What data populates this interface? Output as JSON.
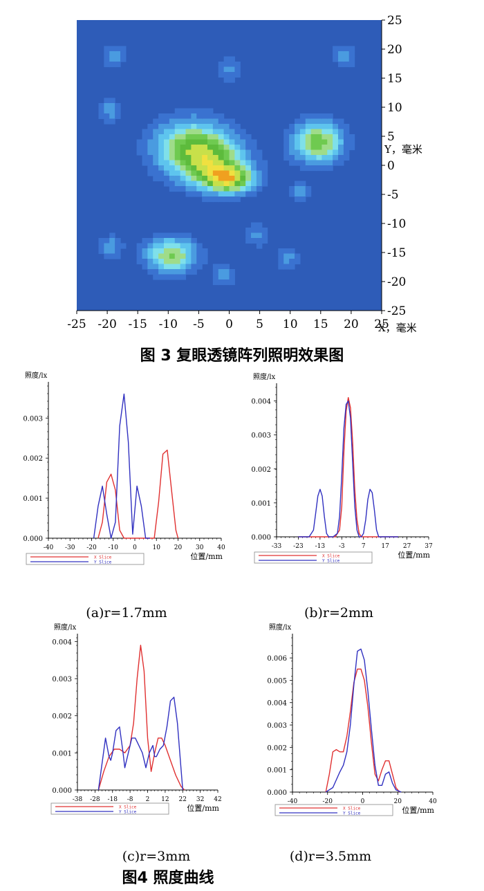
{
  "figure3": {
    "caption": "图 3 复眼透镜阵列照明效果图",
    "chart_data": {
      "type": "heatmap",
      "xlabel": "X，毫米",
      "ylabel": "Y，毫米",
      "xlim": [
        -25,
        25
      ],
      "ylim": [
        -25,
        25
      ],
      "xticks": [
        "-25",
        "-20",
        "-15",
        "-10",
        "-5",
        "0",
        "5",
        "10",
        "15",
        "20",
        "25"
      ],
      "yticks": [
        "25",
        "20",
        "15",
        "10",
        "5",
        "0",
        "-5",
        "-10",
        "-15",
        "-20",
        "-25"
      ],
      "levels": [
        "#2e5cb8",
        "#3a72d0",
        "#4a9be0",
        "#5ec4ee",
        "#7fe0ea",
        "#9fdc8a",
        "#6fca50",
        "#5dbb3c",
        "#c8e04a",
        "#f0e040",
        "#f0a020",
        "#e84a18",
        "#e81818"
      ],
      "background_level": 0,
      "blobs": [
        {
          "x": -19,
          "y": 19,
          "sx": 1.4,
          "sy": 1.4,
          "amp": 0.22
        },
        {
          "x": 19,
          "y": 19,
          "sx": 1.4,
          "sy": 1.4,
          "amp": 0.22
        },
        {
          "x": 0,
          "y": 16.5,
          "sx": 1.4,
          "sy": 1.4,
          "amp": 0.2
        },
        {
          "x": -19.5,
          "y": 9.5,
          "sx": 1.4,
          "sy": 1.4,
          "amp": 0.22
        },
        {
          "x": 14.5,
          "y": 4,
          "sx": 3.0,
          "sy": 2.6,
          "amp": 0.55
        },
        {
          "x": -6,
          "y": 3,
          "sx": 4.5,
          "sy": 3.5,
          "amp": 0.55
        },
        {
          "x": -2,
          "y": 0,
          "sx": 4.0,
          "sy": 2.8,
          "amp": 0.35
        },
        {
          "x": 0,
          "y": -2.5,
          "sx": 3.0,
          "sy": 1.6,
          "amp": 0.55
        },
        {
          "x": 11.5,
          "y": -4.5,
          "sx": 1.2,
          "sy": 1.2,
          "amp": 0.2
        },
        {
          "x": 4.5,
          "y": -12,
          "sx": 1.4,
          "sy": 1.4,
          "amp": 0.2
        },
        {
          "x": 9.5,
          "y": -16,
          "sx": 1.4,
          "sy": 1.4,
          "amp": 0.2
        },
        {
          "x": -19.5,
          "y": -14,
          "sx": 1.4,
          "sy": 1.4,
          "amp": 0.22
        },
        {
          "x": -9.5,
          "y": -15.5,
          "sx": 3.0,
          "sy": 2.2,
          "amp": 0.5
        },
        {
          "x": -1,
          "y": -19,
          "sx": 1.4,
          "sy": 1.4,
          "amp": 0.2
        }
      ]
    }
  },
  "figure4": {
    "caption": "图4  照度曲线",
    "chart_data": [
      {
        "type": "line",
        "ylabel": "照度/lx",
        "xlabel": "位置/mm",
        "subcaption": "(a)r=1.7mm",
        "xlim": [
          -40,
          40
        ],
        "ylim": [
          0,
          0.0038
        ],
        "xticks": [
          "-40",
          "-30",
          "-20",
          "-10",
          "0",
          "10",
          "20",
          "30",
          "40"
        ],
        "xtick_values": [
          -40,
          -30,
          -20,
          -10,
          0,
          10,
          20,
          30,
          40
        ],
        "yticks": [
          "0.000",
          "0.001",
          "0.002",
          "0.003"
        ],
        "ytick_values": [
          0,
          0.001,
          0.002,
          0.003
        ],
        "series": [
          {
            "name": "X Slice",
            "color": "#e03030",
            "x": [
              -17,
              -15,
              -13,
              -11,
              -9,
              -7,
              -5,
              -3,
              -1,
              1,
              3,
              5,
              7,
              9,
              11,
              13,
              15,
              17,
              19,
              20
            ],
            "y": [
              0,
              0.0004,
              0.0014,
              0.0016,
              0.0012,
              0.0002,
              0,
              0,
              0,
              0,
              0,
              0,
              0,
              0,
              0.0009,
              0.0021,
              0.0022,
              0.0012,
              0.0002,
              0
            ]
          },
          {
            "name": "Y Slice",
            "color": "#3030c0",
            "x": [
              -19,
              -17,
              -15,
              -13,
              -11,
              -9,
              -7,
              -5,
              -3,
              -1,
              1,
              3,
              5,
              7
            ],
            "y": [
              0,
              0.0008,
              0.0013,
              0.0006,
              0,
              0.0004,
              0.0028,
              0.0036,
              0.0024,
              0.0001,
              0.0013,
              0.0008,
              0,
              0
            ]
          }
        ]
      },
      {
        "type": "line",
        "ylabel": "照度/lx",
        "xlabel": "位置/mm",
        "subcaption": "(b)r=2mm",
        "xlim": [
          -33,
          37
        ],
        "ylim": [
          0,
          0.0044
        ],
        "xticks": [
          "-33",
          "-23",
          "-13",
          "-3",
          "7",
          "17",
          "27",
          "37"
        ],
        "xtick_values": [
          -33,
          -23,
          -13,
          -3,
          7,
          17,
          27,
          37
        ],
        "yticks": [
          "0.000",
          "0.001",
          "0.002",
          "0.003",
          "0.004"
        ],
        "ytick_values": [
          0,
          0.001,
          0.002,
          0.003,
          0.004
        ],
        "series": [
          {
            "name": "X Slice",
            "color": "#e03030",
            "x": [
              -23,
              -8,
              -6,
              -4,
              -3,
              -2,
              -1,
              0,
              1,
              2,
              3,
              4,
              5,
              6,
              8,
              10,
              12,
              14,
              16,
              18,
              20,
              23
            ],
            "y": [
              0,
              0,
              0,
              0.0002,
              0.0009,
              0.0025,
              0.0037,
              0.0041,
              0.0038,
              0.0028,
              0.0014,
              0.0005,
              0.0001,
              0,
              0,
              0,
              0,
              0,
              0,
              0,
              0,
              0
            ]
          },
          {
            "name": "Y Slice",
            "color": "#3030c0",
            "x": [
              -23,
              -18,
              -16,
              -15,
              -14,
              -13,
              -12,
              -11,
              -10,
              -9,
              -7,
              -5,
              -4,
              -3,
              -2,
              -1,
              0,
              1,
              2,
              3,
              4,
              5,
              6,
              7,
              8,
              9,
              10,
              11,
              12,
              13,
              14,
              18,
              23
            ],
            "y": [
              0,
              0,
              0.0002,
              0.0007,
              0.0012,
              0.0014,
              0.0012,
              0.0006,
              0.0001,
              0,
              0,
              0.0001,
              0.0006,
              0.0018,
              0.0032,
              0.0039,
              0.004,
              0.0035,
              0.0022,
              0.0009,
              0.0002,
              0,
              0,
              0.0001,
              0.0005,
              0.0011,
              0.0014,
              0.0013,
              0.0008,
              0.0002,
              0,
              0,
              0
            ]
          }
        ]
      },
      {
        "type": "line",
        "ylabel": "照度/lx",
        "xlabel": "位置/mm",
        "subcaption": "(c)r=3mm",
        "xlim": [
          -38,
          42
        ],
        "ylim": [
          0,
          0.0041
        ],
        "xticks": [
          "-38",
          "-28",
          "-18",
          "-8",
          "2",
          "12",
          "22",
          "32",
          "42"
        ],
        "xtick_values": [
          -38,
          -28,
          -18,
          -8,
          2,
          12,
          22,
          32,
          42
        ],
        "yticks": [
          "0.000",
          "0.001",
          "0.002",
          "0.003",
          "0.004"
        ],
        "ytick_values": [
          0,
          0.001,
          0.002,
          0.003,
          0.004
        ],
        "series": [
          {
            "name": "X Slice",
            "color": "#e03030",
            "x": [
              -26,
              -23,
              -20,
              -17,
              -14,
              -11,
              -8,
              -6,
              -4,
              -2,
              0,
              2,
              4,
              6,
              8,
              10,
              12,
              15,
              18,
              21,
              23
            ],
            "y": [
              0,
              0.0005,
              0.0009,
              0.0011,
              0.0011,
              0.001,
              0.0012,
              0.0018,
              0.003,
              0.0039,
              0.0032,
              0.0014,
              0.0005,
              0.001,
              0.0014,
              0.0014,
              0.0012,
              0.0008,
              0.0004,
              0.0001,
              0
            ]
          },
          {
            "name": "Y Slice",
            "color": "#3030c0",
            "x": [
              -26,
              -24,
              -22,
              -20,
              -19,
              -18,
              -16,
              -14,
              -12,
              -11,
              -9,
              -7,
              -5,
              -3,
              -1,
              1,
              3,
              5,
              6,
              7,
              9,
              11,
              13,
              15,
              17,
              19,
              21,
              22
            ],
            "y": [
              0,
              0.0007,
              0.0014,
              0.0009,
              0.0008,
              0.001,
              0.0016,
              0.0017,
              0.001,
              0.0006,
              0.001,
              0.0014,
              0.0014,
              0.0012,
              0.001,
              0.0006,
              0.001,
              0.0012,
              0.0009,
              0.0009,
              0.0011,
              0.0012,
              0.0017,
              0.0024,
              0.0025,
              0.0018,
              0.0006,
              0
            ]
          }
        ]
      },
      {
        "type": "line",
        "ylabel": "照度/lx",
        "xlabel": "位置/mm",
        "subcaption": "(d)r=3.5mm",
        "xlim": [
          -40,
          40
        ],
        "ylim": [
          0,
          0.0069
        ],
        "xticks": [
          "-40",
          "-20",
          "0",
          "20",
          "40"
        ],
        "xtick_values": [
          -40,
          -20,
          0,
          20,
          40
        ],
        "yticks": [
          "0.000",
          "0.001",
          "0.002",
          "0.003",
          "0.004",
          "0.005",
          "0.006"
        ],
        "ytick_values": [
          0,
          0.001,
          0.002,
          0.003,
          0.004,
          0.005,
          0.006
        ],
        "series": [
          {
            "name": "X Slice",
            "color": "#e03030",
            "x": [
              -21,
              -19,
              -17,
              -15,
              -13,
              -11,
              -9,
              -7,
              -5,
              -3,
              -1,
              1,
              3,
              5,
              7,
              9,
              11,
              13,
              15,
              17,
              19,
              21
            ],
            "y": [
              0,
              0.0008,
              0.0018,
              0.0019,
              0.0018,
              0.0018,
              0.0025,
              0.0036,
              0.0049,
              0.0055,
              0.0055,
              0.005,
              0.0038,
              0.0022,
              0.0008,
              0.0005,
              0.001,
              0.0014,
              0.0014,
              0.0008,
              0.0002,
              0
            ]
          },
          {
            "name": "Y Slice",
            "color": "#3030c0",
            "x": [
              -21,
              -17,
              -13,
              -11,
              -9,
              -7,
              -5,
              -3,
              -1,
              1,
              3,
              5,
              7,
              9,
              11,
              13,
              15,
              17,
              19,
              22
            ],
            "y": [
              0,
              0.0002,
              0.0009,
              0.0012,
              0.0018,
              0.003,
              0.0048,
              0.0063,
              0.0064,
              0.0059,
              0.0045,
              0.0028,
              0.0012,
              0.0003,
              0.0003,
              0.0008,
              0.0009,
              0.0004,
              0.0001,
              0
            ]
          }
        ]
      }
    ]
  }
}
